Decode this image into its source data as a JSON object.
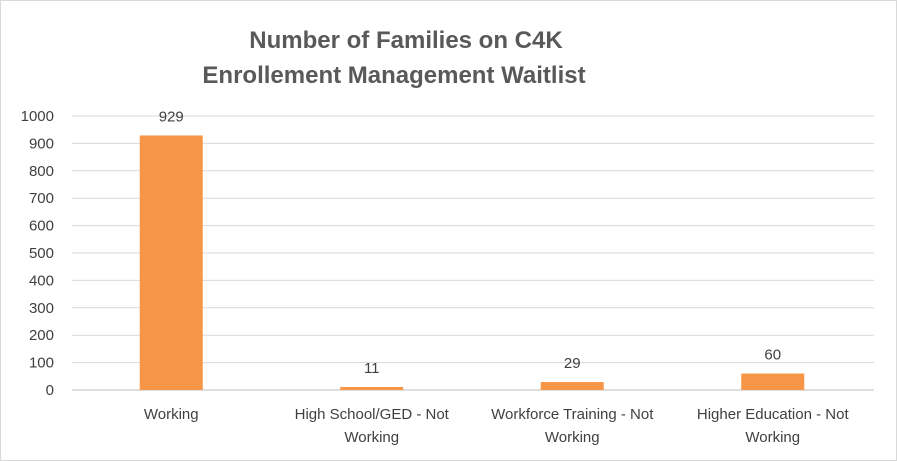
{
  "chart_data": {
    "type": "bar",
    "title": [
      "Number of Families on C4K",
      "Enrollement Management Waitlist"
    ],
    "categories": [
      [
        "Working"
      ],
      [
        "High School/GED - Not",
        "Working"
      ],
      [
        "Workforce Training - Not",
        "Working"
      ],
      [
        "Higher Education - Not",
        "Working"
      ]
    ],
    "values": [
      929,
      11,
      29,
      60
    ],
    "data_labels": [
      "929",
      "11",
      "29",
      "60"
    ],
    "xlabel": "",
    "ylabel": "",
    "ylim": [
      0,
      1000
    ],
    "y_ticks": [
      0,
      100,
      200,
      300,
      400,
      500,
      600,
      700,
      800,
      900,
      1000
    ],
    "grid": true,
    "legend": "none",
    "bar_color": "#F79646"
  }
}
